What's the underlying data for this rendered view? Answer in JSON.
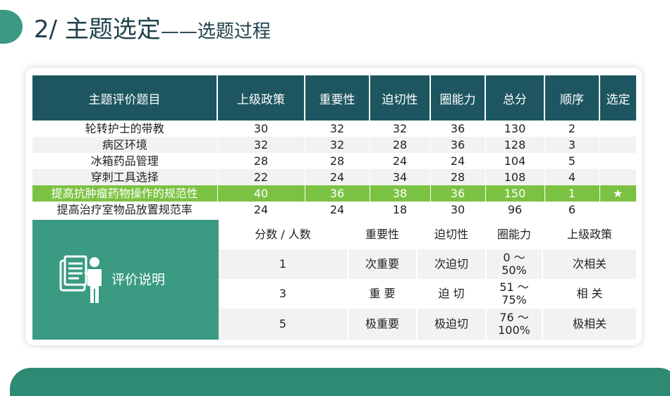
{
  "title": {
    "main": "2/ 主题选定",
    "sub": "——选题过程"
  },
  "table": {
    "headers": [
      "主题评价题目",
      "上级政策",
      "重要性",
      "迫切性",
      "圈能力",
      "总分",
      "顺序",
      "选定"
    ],
    "rows": [
      [
        "轮转护士的带教",
        "30",
        "32",
        "32",
        "36",
        "130",
        "2",
        ""
      ],
      [
        "病区环境",
        "32",
        "32",
        "28",
        "36",
        "128",
        "3",
        ""
      ],
      [
        "冰箱药品管理",
        "28",
        "28",
        "24",
        "24",
        "104",
        "5",
        ""
      ],
      [
        "穿刺工具选择",
        "22",
        "24",
        "34",
        "28",
        "108",
        "4",
        ""
      ],
      [
        "提高抗肿瘤药物操作的规范性",
        "40",
        "36",
        "38",
        "36",
        "150",
        "1",
        "★"
      ],
      [
        "提高治疗室物品放置规范率",
        "24",
        "24",
        "18",
        "30",
        "96",
        "6",
        ""
      ]
    ],
    "highlight_color": "#7cc242"
  },
  "legend": {
    "label": "评价说明",
    "headers": [
      "分数 / 人数",
      "重要性",
      "迫切性",
      "圈能力",
      "上级政策"
    ],
    "rows": [
      [
        "1",
        "次重要",
        "次迫切",
        "0 ～ 50%",
        "次相关"
      ],
      [
        "3",
        "重 要",
        "迫 切",
        "51 ～ 75%",
        "相 关"
      ],
      [
        "5",
        "极重要",
        "极迫切",
        "76 ～ 100%",
        "极相关"
      ]
    ]
  },
  "colors": {
    "header_bg": "#1d5660",
    "accent_green": "#3a9a82",
    "title": "#1f3f4a"
  }
}
